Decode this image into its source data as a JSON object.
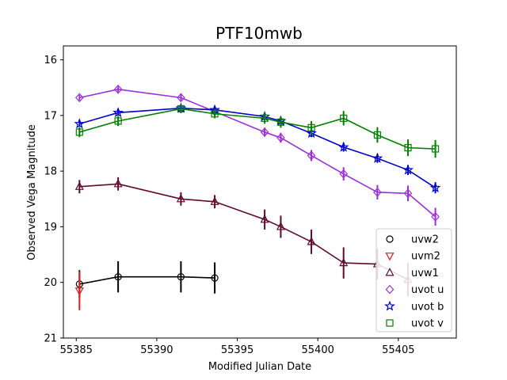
{
  "chart_data": {
    "type": "line",
    "title": "PTF10mwb",
    "xlabel": "Modified Julian Date",
    "ylabel": "Observed Vega Magnitude",
    "xlim": [
      55384.2,
      55408.6
    ],
    "ylim": [
      21,
      15.75
    ],
    "y_inverted": true,
    "xticks": [
      55385,
      55390,
      55395,
      55400,
      55405
    ],
    "yticks": [
      16,
      17,
      18,
      19,
      20,
      21
    ],
    "grid": false,
    "legend_position": "lower-right",
    "series": [
      {
        "name": "uvw2",
        "color": "#000000",
        "marker": "circle",
        "connected": true,
        "x": [
          55385.2,
          55387.6,
          55391.5,
          55393.6
        ],
        "y": [
          20.03,
          19.9,
          19.9,
          19.92
        ],
        "yerr": [
          0.25,
          0.28,
          0.28,
          0.28
        ]
      },
      {
        "name": "uvm2",
        "color": "#e41a1c",
        "marker": "triangle-down",
        "connected": false,
        "x": [
          55385.2
        ],
        "y": [
          20.15
        ],
        "yerr": [
          0.35
        ]
      },
      {
        "name": "uvw1",
        "color": "#5e0a2e",
        "marker": "triangle-up",
        "connected": true,
        "x": [
          55385.2,
          55387.6,
          55391.5,
          55393.6,
          55396.7,
          55397.7,
          55399.6,
          55401.6,
          55403.7,
          55405.6
        ],
        "y": [
          18.28,
          18.23,
          18.5,
          18.55,
          18.87,
          19.0,
          19.27,
          19.65,
          19.67,
          19.95
        ],
        "yerr": [
          0.12,
          0.12,
          0.12,
          0.12,
          0.18,
          0.2,
          0.22,
          0.28,
          0.28,
          0.3
        ]
      },
      {
        "name": "uvot u",
        "color": "#9b30d9",
        "marker": "diamond",
        "connected": true,
        "x": [
          55385.2,
          55387.6,
          55391.5,
          55393.6,
          55396.7,
          55397.7,
          55399.6,
          55401.6,
          55403.7,
          55405.6,
          55407.3
        ],
        "y": [
          16.68,
          16.53,
          16.68,
          16.93,
          17.3,
          17.4,
          17.72,
          18.05,
          18.38,
          18.4,
          18.82
        ],
        "yerr": [
          0.05,
          0.05,
          0.06,
          0.06,
          0.08,
          0.09,
          0.1,
          0.12,
          0.13,
          0.14,
          0.16
        ]
      },
      {
        "name": "uvot b",
        "color": "#0000cc",
        "marker": "star",
        "connected": true,
        "x": [
          55385.2,
          55387.6,
          55391.5,
          55393.6,
          55396.7,
          55397.7,
          55399.6,
          55401.6,
          55403.7,
          55405.6,
          55407.3
        ],
        "y": [
          17.15,
          16.95,
          16.87,
          16.9,
          17.02,
          17.1,
          17.32,
          17.57,
          17.77,
          17.98,
          18.3
        ],
        "yerr": [
          0.05,
          0.05,
          0.05,
          0.05,
          0.06,
          0.07,
          0.07,
          0.08,
          0.08,
          0.09,
          0.1
        ]
      },
      {
        "name": "uvot v",
        "color": "#008000",
        "marker": "square",
        "connected": true,
        "x": [
          55385.2,
          55387.6,
          55391.5,
          55393.6,
          55396.7,
          55397.7,
          55399.6,
          55401.6,
          55403.7,
          55405.6,
          55407.3
        ],
        "y": [
          17.3,
          17.1,
          16.88,
          16.97,
          17.05,
          17.12,
          17.22,
          17.05,
          17.35,
          17.58,
          17.6
        ],
        "yerr": [
          0.09,
          0.09,
          0.08,
          0.08,
          0.1,
          0.1,
          0.12,
          0.13,
          0.14,
          0.15,
          0.16
        ]
      }
    ]
  }
}
